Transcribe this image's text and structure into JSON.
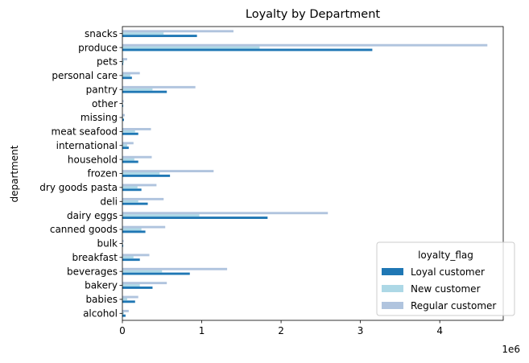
{
  "chart_data": {
    "type": "bar",
    "orientation": "horizontal",
    "title": "Loyalty by Department",
    "ylabel": "department",
    "xlabel": "",
    "x_offset_label": "1e6",
    "xlim": [
      0,
      4.8
    ],
    "x_ticks": [
      0,
      1,
      2,
      3,
      4
    ],
    "x_tick_labels": [
      "0",
      "1",
      "2",
      "3",
      "4"
    ],
    "grid": false,
    "legend_position": "bottom-right",
    "legend_title": "loyalty_flag",
    "categories": [
      "alcohol",
      "babies",
      "bakery",
      "beverages",
      "breakfast",
      "bulk",
      "canned goods",
      "dairy eggs",
      "deli",
      "dry goods pasta",
      "frozen",
      "household",
      "international",
      "meat seafood",
      "missing",
      "other",
      "pantry",
      "personal care",
      "pets",
      "produce",
      "snacks"
    ],
    "series": [
      {
        "name": "Loyal customer",
        "color": "#1f77b4",
        "values": [
          0.04,
          0.16,
          0.38,
          0.85,
          0.22,
          0.01,
          0.29,
          1.83,
          0.32,
          0.24,
          0.6,
          0.2,
          0.08,
          0.2,
          0.02,
          0.01,
          0.56,
          0.12,
          0.01,
          3.15,
          0.94
        ]
      },
      {
        "name": "New customer",
        "color": "#add8e6",
        "values": [
          0.02,
          0.06,
          0.22,
          0.5,
          0.14,
          0.005,
          0.24,
          0.97,
          0.2,
          0.19,
          0.47,
          0.15,
          0.06,
          0.16,
          0.01,
          0.005,
          0.38,
          0.1,
          0.02,
          1.73,
          0.52
        ]
      },
      {
        "name": "Regular customer",
        "color": "#b0c4de",
        "values": [
          0.08,
          0.2,
          0.56,
          1.32,
          0.34,
          0.015,
          0.54,
          2.59,
          0.52,
          0.43,
          1.15,
          0.37,
          0.14,
          0.36,
          0.03,
          0.015,
          0.92,
          0.22,
          0.06,
          4.6,
          1.4
        ]
      }
    ]
  }
}
